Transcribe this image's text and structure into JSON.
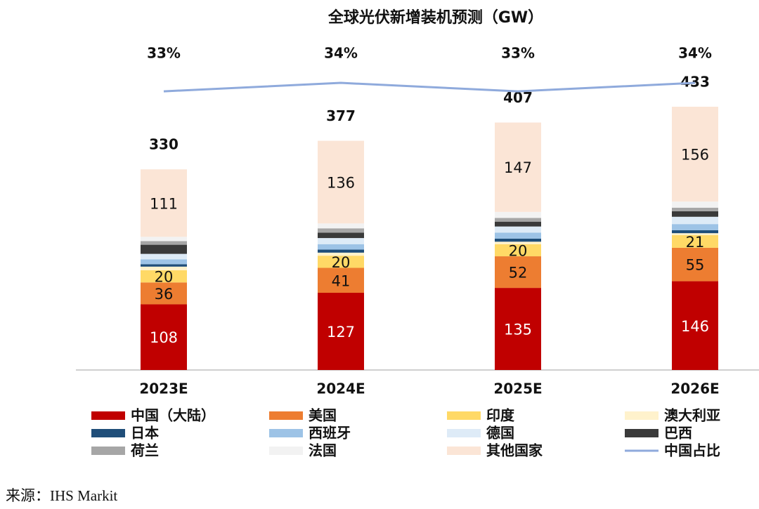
{
  "chart_data": {
    "type": "bar",
    "stacked": true,
    "title": "全球光伏新增装机预测（GW）",
    "categories": [
      "2023E",
      "2024E",
      "2025E",
      "2026E"
    ],
    "ylim": [
      0,
      500
    ],
    "y2lim": [
      0,
      36
    ],
    "series": [
      {
        "name": "中国（大陆）",
        "color": "#c00000",
        "values": [
          108,
          127,
          135,
          146
        ],
        "show_labels": true,
        "label_color": "#ffffff"
      },
      {
        "name": "美国",
        "color": "#ed7d31",
        "values": [
          36,
          41,
          52,
          55
        ],
        "show_labels": true,
        "label_color": "#111111"
      },
      {
        "name": "印度",
        "color": "#ffd966",
        "values": [
          20,
          20,
          20,
          21
        ],
        "show_labels": true,
        "label_color": "#111111"
      },
      {
        "name": "澳大利亚",
        "color": "#fff2cc",
        "values": [
          6,
          5,
          4,
          3
        ],
        "show_labels": false
      },
      {
        "name": "日本",
        "color": "#1f4e79",
        "values": [
          4,
          5,
          5,
          5
        ],
        "show_labels": false
      },
      {
        "name": "西班牙",
        "color": "#9dc3e6",
        "values": [
          8,
          9,
          10,
          10
        ],
        "show_labels": false
      },
      {
        "name": "德国",
        "color": "#deebf7",
        "values": [
          9,
          10,
          10,
          12
        ],
        "show_labels": false
      },
      {
        "name": "巴西",
        "color": "#3a3a3a",
        "values": [
          15,
          9,
          8,
          9
        ],
        "show_labels": false
      },
      {
        "name": "荷兰",
        "color": "#a6a6a6",
        "values": [
          6,
          7,
          6,
          6
        ],
        "show_labels": false
      },
      {
        "name": "法国",
        "color": "#f2f2f2",
        "values": [
          7,
          8,
          10,
          10
        ],
        "show_labels": false
      },
      {
        "name": "其他国家",
        "color": "#fbe5d6",
        "values": [
          111,
          136,
          147,
          156
        ],
        "show_labels": true,
        "label_color": "#111111"
      },
      {
        "name": "中国占比",
        "type": "line",
        "axis": "y2",
        "color": "#8faadc",
        "values": [
          33,
          34,
          33,
          34
        ],
        "value_labels": [
          "33%",
          "34%",
          "33%",
          "34%"
        ]
      }
    ],
    "totals": [
      330,
      377,
      407,
      433
    ],
    "legend": "bottom",
    "source": "来源：IHS Markit"
  }
}
